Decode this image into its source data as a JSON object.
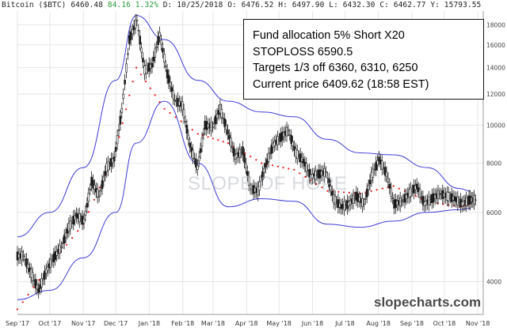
{
  "header": {
    "ticker": "Bitcoin ($BTC)",
    "last": "6460.48",
    "change": "84.16 1.32%",
    "date": "D: 10/25/2018",
    "open": "O: 6476.52",
    "high": "H: 6497.90",
    "low": "L: 6432.30",
    "close": "C: 6462.77",
    "volume": "Y: 15793.55"
  },
  "annotation": {
    "line1": "Fund allocation 5% Short X20",
    "line2": "STOPLOSS 6590.5",
    "line3": "Targets 1/3 off 6360, 6310, 6250",
    "line4": "Current price 6409.62 (18:58 EST)"
  },
  "watermark": "SLOPE OF HOPE",
  "brand": "slopecharts.com",
  "colors": {
    "candle": "#1a1a1a",
    "band": "#3d3dd6",
    "sar": "#ee1111",
    "grid": "#e6e6e6",
    "axis": "#999999"
  },
  "chart_data": {
    "type": "line",
    "title": "Bitcoin ($BTC)",
    "scale": "log",
    "ylim": [
      3300,
      19500
    ],
    "yticks": [
      4000,
      6000,
      8000,
      10000,
      12000,
      14000,
      16000,
      18000
    ],
    "ytick_labels": [
      "4000",
      "6000",
      "8000",
      "10000",
      "12000",
      "14000",
      "16000",
      "18000"
    ],
    "xticks": [
      "2017-09-01",
      "2017-10-01",
      "2017-11-01",
      "2017-12-01",
      "2018-01-01",
      "2018-02-01",
      "2018-03-01",
      "2018-04-01",
      "2018-05-01",
      "2018-06-01",
      "2018-07-01",
      "2018-08-01",
      "2018-09-01",
      "2018-10-01",
      "2018-11-01"
    ],
    "xtick_labels": [
      "Sep '17",
      "Oct '17",
      "Nov '17",
      "Dec '17",
      "Jan '18",
      "Feb '18",
      "Mar '18",
      "Apr '18",
      "May '18",
      "Jun '18",
      "Jul '18",
      "Aug '18",
      "Sep '18",
      "Oct '18",
      "Nov '18"
    ],
    "grid": true,
    "series": [
      {
        "name": "Price",
        "style": "candlestick",
        "x": [
          "2017-09-01",
          "2017-09-08",
          "2017-09-15",
          "2017-09-22",
          "2017-09-29",
          "2017-10-06",
          "2017-10-13",
          "2017-10-20",
          "2017-10-27",
          "2017-11-03",
          "2017-11-10",
          "2017-11-17",
          "2017-11-24",
          "2017-12-01",
          "2017-12-08",
          "2017-12-15",
          "2017-12-22",
          "2017-12-29",
          "2018-01-05",
          "2018-01-12",
          "2018-01-19",
          "2018-01-26",
          "2018-02-02",
          "2018-02-09",
          "2018-02-16",
          "2018-02-23",
          "2018-03-02",
          "2018-03-09",
          "2018-03-16",
          "2018-03-23",
          "2018-03-30",
          "2018-04-06",
          "2018-04-13",
          "2018-04-20",
          "2018-04-27",
          "2018-05-04",
          "2018-05-11",
          "2018-05-18",
          "2018-05-25",
          "2018-06-01",
          "2018-06-08",
          "2018-06-15",
          "2018-06-22",
          "2018-06-29",
          "2018-07-06",
          "2018-07-13",
          "2018-07-20",
          "2018-07-27",
          "2018-08-03",
          "2018-08-10",
          "2018-08-17",
          "2018-08-24",
          "2018-08-31",
          "2018-09-07",
          "2018-09-14",
          "2018-09-21",
          "2018-09-28",
          "2018-10-05",
          "2018-10-12",
          "2018-10-19",
          "2018-10-25"
        ],
        "close": [
          4650,
          4200,
          3800,
          4250,
          4600,
          4900,
          5500,
          5900,
          5700,
          7200,
          6600,
          7800,
          8200,
          10900,
          16500,
          18500,
          13800,
          14200,
          17000,
          13500,
          11600,
          11200,
          8900,
          7800,
          10000,
          9900,
          11000,
          9600,
          8300,
          8600,
          6900,
          6800,
          7900,
          8900,
          9300,
          9700,
          8500,
          8100,
          7400,
          7500,
          7600,
          6500,
          6200,
          6300,
          6600,
          6300,
          7400,
          8200,
          7500,
          6300,
          6400,
          6700,
          7000,
          6300,
          6500,
          6700,
          6600,
          6500,
          6300,
          6450,
          6460
        ]
      },
      {
        "name": "Upper Band",
        "x": [
          "2017-09-01",
          "2017-10-01",
          "2017-11-01",
          "2017-12-01",
          "2017-12-20",
          "2018-01-15",
          "2018-02-15",
          "2018-03-15",
          "2018-04-15",
          "2018-05-15",
          "2018-06-15",
          "2018-07-15",
          "2018-08-15",
          "2018-09-15",
          "2018-10-15",
          "2018-10-25"
        ],
        "values": [
          5200,
          6000,
          7800,
          13000,
          19000,
          16500,
          13000,
          11500,
          10800,
          10500,
          9200,
          8500,
          8400,
          7800,
          6900,
          6800
        ]
      },
      {
        "name": "Lower Band",
        "x": [
          "2017-09-01",
          "2017-10-01",
          "2017-11-01",
          "2017-12-01",
          "2017-12-20",
          "2018-01-15",
          "2018-02-15",
          "2018-03-15",
          "2018-04-15",
          "2018-05-15",
          "2018-06-15",
          "2018-07-15",
          "2018-08-15",
          "2018-09-15",
          "2018-10-15",
          "2018-10-25"
        ],
        "values": [
          3600,
          3800,
          4600,
          6000,
          9000,
          11500,
          8000,
          6200,
          6500,
          6400,
          5600,
          5500,
          5700,
          6000,
          6100,
          6150
        ]
      },
      {
        "name": "Parabolic SAR",
        "style": "dots",
        "x": [
          "2017-09-01",
          "2017-10-01",
          "2017-11-01",
          "2017-12-01",
          "2017-12-20",
          "2018-01-15",
          "2018-02-15",
          "2018-03-15",
          "2018-04-15",
          "2018-05-15",
          "2018-06-15",
          "2018-07-15",
          "2018-08-15",
          "2018-09-15",
          "2018-10-15",
          "2018-10-25"
        ],
        "values": [
          3400,
          4400,
          5600,
          8600,
          14000,
          11000,
          9500,
          9000,
          8000,
          7700,
          6800,
          6700,
          7000,
          6400,
          6200,
          6300
        ]
      }
    ]
  }
}
